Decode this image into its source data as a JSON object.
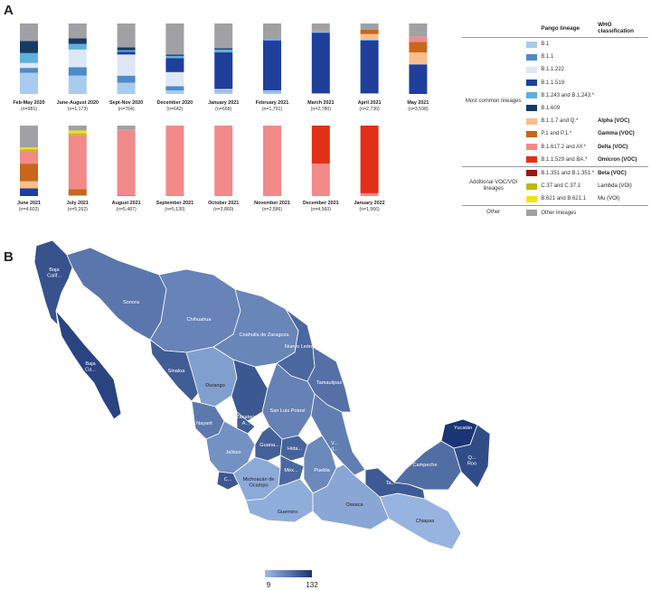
{
  "panel_a_letter": "A",
  "panel_b_letter": "B",
  "colors": {
    "B.1": "#a9cbee",
    "B.1.1": "#4f8ac9",
    "B.1.1.222": "#dce8f6",
    "B.1.1.519": "#1f3f9a",
    "B.1.243": "#5fb0dc",
    "B.1.609": "#163b63",
    "Alpha": "#f9be8c",
    "Gamma": "#c8661c",
    "Delta": "#f28a8a",
    "Omicron": "#e03018",
    "Beta": "#9e1513",
    "Lambda": "#b7ba16",
    "Mu": "#f0e21c",
    "Other": "#a1a1a5"
  },
  "chart_data": [
    {
      "type": "bar",
      "stacked": true,
      "normalized": true,
      "categories": [
        "Feb-May 2020",
        "June-August 2020",
        "Sept-Nov 2020",
        "December 2020",
        "January 2021",
        "February 2021",
        "March 2021",
        "April 2021",
        "May 2021",
        "June 2021",
        "July 2021",
        "August 2021",
        "September 2021",
        "October 2021",
        "November 2021",
        "December 2021",
        "January 2022"
      ],
      "n": [
        "(n=981)",
        "(n=1,173)",
        "(n=764)",
        "(n=642)",
        "(n=668)",
        "(n=1,791)",
        "(n=2,780)",
        "(n=2,730)",
        "(n=3,598)",
        "(n=4,603)",
        "(n=5,262)",
        "(n=5,487)",
        "(n=5,130)",
        "(n=3,860)",
        "(n=2,586)",
        "(n=4,560)",
        "(n=1,566)"
      ],
      "series": [
        {
          "key": "B.1",
          "values": [
            0.3,
            0.26,
            0.16,
            0.05,
            0.04,
            0.03,
            0.01,
            0.01,
            0,
            0,
            0,
            0,
            0,
            0,
            0,
            0,
            0
          ]
        },
        {
          "key": "B.1.1",
          "values": [
            0.07,
            0.12,
            0.1,
            0.06,
            0.01,
            0.01,
            0,
            0,
            0,
            0,
            0,
            0,
            0,
            0,
            0,
            0,
            0
          ]
        },
        {
          "key": "B.1.1.222",
          "values": [
            0.07,
            0.25,
            0.3,
            0.2,
            0.02,
            0.01,
            0,
            0,
            0,
            0,
            0,
            0,
            0,
            0,
            0,
            0,
            0
          ]
        },
        {
          "key": "B.1.1.519",
          "values": [
            0,
            0,
            0.04,
            0.2,
            0.52,
            0.71,
            0.86,
            0.75,
            0.42,
            0.11,
            0,
            0,
            0,
            0,
            0,
            0,
            0
          ]
        },
        {
          "key": "B.1.243",
          "values": [
            0.14,
            0.08,
            0.02,
            0.03,
            0.04,
            0.02,
            0.01,
            0.01,
            0,
            0,
            0,
            0,
            0,
            0,
            0,
            0,
            0
          ]
        },
        {
          "key": "B.1.609",
          "values": [
            0.17,
            0.08,
            0.04,
            0.02,
            0.02,
            0,
            0,
            0,
            0,
            0,
            0,
            0,
            0,
            0,
            0,
            0,
            0
          ]
        },
        {
          "key": "Alpha",
          "values": [
            0,
            0,
            0,
            0,
            0,
            0,
            0.01,
            0.08,
            0.17,
            0.1,
            0.01,
            0,
            0,
            0,
            0,
            0,
            0
          ]
        },
        {
          "key": "Gamma",
          "values": [
            0,
            0,
            0,
            0,
            0,
            0,
            0.01,
            0.06,
            0.15,
            0.25,
            0.09,
            0.01,
            0,
            0,
            0,
            0,
            0
          ]
        },
        {
          "key": "Delta",
          "values": [
            0,
            0,
            0,
            0,
            0,
            0,
            0,
            0,
            0.07,
            0.18,
            0.77,
            0.93,
            1.0,
            1.0,
            1.0,
            0.46,
            0.04
          ]
        },
        {
          "key": "Omicron",
          "values": [
            0,
            0,
            0,
            0,
            0,
            0,
            0,
            0,
            0,
            0,
            0,
            0,
            0,
            0,
            0,
            0.54,
            0.96
          ]
        },
        {
          "key": "Beta",
          "values": [
            0,
            0,
            0,
            0,
            0,
            0,
            0,
            0,
            0,
            0,
            0,
            0,
            0,
            0,
            0,
            0,
            0
          ]
        },
        {
          "key": "Lambda",
          "values": [
            0,
            0,
            0,
            0,
            0,
            0,
            0,
            0,
            0,
            0.02,
            0.02,
            0,
            0,
            0,
            0,
            0,
            0
          ]
        },
        {
          "key": "Mu",
          "values": [
            0,
            0,
            0,
            0,
            0,
            0,
            0,
            0,
            0,
            0.03,
            0.04,
            0,
            0,
            0,
            0,
            0,
            0
          ]
        },
        {
          "key": "Other",
          "values": [
            0.25,
            0.21,
            0.34,
            0.44,
            0.35,
            0.22,
            0.1,
            0.09,
            0.19,
            0.31,
            0.07,
            0.06,
            0,
            0,
            0,
            0,
            0
          ]
        }
      ]
    },
    {
      "type": "heatmap",
      "scale": {
        "min": 9,
        "max": 132,
        "min_color": "#9dbbe6",
        "max_color": "#1a3574"
      },
      "tick_min_label": "9",
      "tick_max_label": "132",
      "states": [
        {
          "label": "Baja Calif...",
          "value": 105
        },
        {
          "label": "Baja Ca...",
          "value": 118
        },
        {
          "label": "Sonora",
          "value": 72
        },
        {
          "label": "Chihuahua",
          "value": 60
        },
        {
          "label": "Coahuila de Zaragoza",
          "value": 58
        },
        {
          "label": "Nuevo León",
          "value": 86
        },
        {
          "label": "Tamaulipas",
          "value": 78
        },
        {
          "label": "Sinaloa",
          "value": 95
        },
        {
          "label": "Durango",
          "value": 35
        },
        {
          "label": "Zacatecas",
          "value": 100
        },
        {
          "label": "Nayarit",
          "value": 70
        },
        {
          "label": "A...",
          "value": 95
        },
        {
          "label": "San Luis Potosí",
          "value": 62
        },
        {
          "label": "Jalisco",
          "value": 48
        },
        {
          "label": "Guana...",
          "value": 92
        },
        {
          "label": "Hida...",
          "value": 90
        },
        {
          "label": "C...",
          "value": 100
        },
        {
          "label": "Michoacán de Ocampo",
          "value": 25
        },
        {
          "label": "Méx...",
          "value": 85
        },
        {
          "label": "V... d...",
          "value": 65
        },
        {
          "label": "Puebla",
          "value": 55
        },
        {
          "label": "Guerrero",
          "value": 22
        },
        {
          "label": "Oaxaca",
          "value": 28
        },
        {
          "label": "Chiapas",
          "value": 15
        },
        {
          "label": "Ta...",
          "value": 98
        },
        {
          "label": "Campeche",
          "value": 80
        },
        {
          "label": "Yucatán",
          "value": 132
        },
        {
          "label": "Q... Roo",
          "value": 110
        }
      ]
    }
  ],
  "legend": {
    "header_lineage": "Pango lineage",
    "header_who": "WHO classification",
    "groups": [
      {
        "label": "Most common lineages",
        "rows": [
          {
            "key": "B.1",
            "lineage": "B.1",
            "who": ""
          },
          {
            "key": "B.1.1",
            "lineage": "B.1.1",
            "who": ""
          },
          {
            "key": "B.1.1.222",
            "lineage": "B.1.1.222",
            "who": ""
          },
          {
            "key": "B.1.1.519",
            "lineage": "B.1.1.519",
            "who": ""
          },
          {
            "key": "B.1.243",
            "lineage": "B.1.243 and B.1.243.*",
            "who": ""
          },
          {
            "key": "B.1.609",
            "lineage": "B.1.609",
            "who": ""
          },
          {
            "key": "Alpha",
            "lineage": "B.1.1.7 and Q.*",
            "who": "Alpha (VOC)"
          },
          {
            "key": "Gamma",
            "lineage": "P.1 and P.1.*",
            "who": "Gamma (VOC)"
          },
          {
            "key": "Delta",
            "lineage": "B.1.617.2 and AY.*",
            "who": "Delta (VOC)"
          },
          {
            "key": "Omicron",
            "lineage": "B.1.1.529 and BA.*",
            "who": "Omicron (VOC)"
          }
        ]
      },
      {
        "label": "Additional VOC/VOI lineages",
        "rows": [
          {
            "key": "Beta",
            "lineage": "B.1.351 and B.1.351.*",
            "who": "Beta (VOC)"
          },
          {
            "key": "Lambda",
            "lineage": "C.37 and C.37.1",
            "who": "Lambda (VOI)",
            "plain": true
          },
          {
            "key": "Mu",
            "lineage": "B.621 and B.621.1",
            "who": "Mu (VOI)",
            "plain": true
          }
        ]
      },
      {
        "label": "Other",
        "rows": [
          {
            "key": "Other",
            "lineage": "Other lineages",
            "who": ""
          }
        ]
      }
    ]
  }
}
